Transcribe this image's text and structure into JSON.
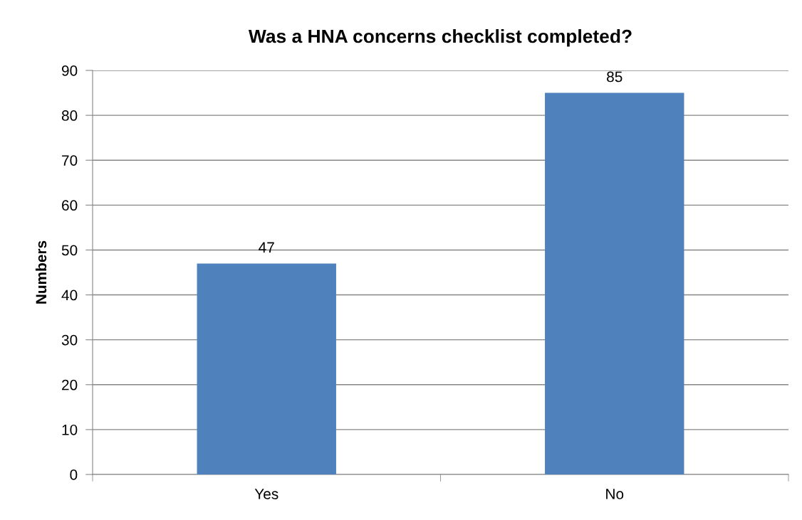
{
  "chart_data": {
    "type": "bar",
    "title": "Was a HNA concerns checklist completed?",
    "ylabel": "Numbers",
    "categories": [
      "Yes",
      "No"
    ],
    "values": [
      47,
      85
    ],
    "color": "#4f81bd",
    "ylim": [
      0,
      90
    ],
    "yticks": [
      0,
      10,
      20,
      30,
      40,
      50,
      60,
      70,
      80,
      90
    ],
    "grid": "y",
    "data_labels": true,
    "legend": false
  }
}
